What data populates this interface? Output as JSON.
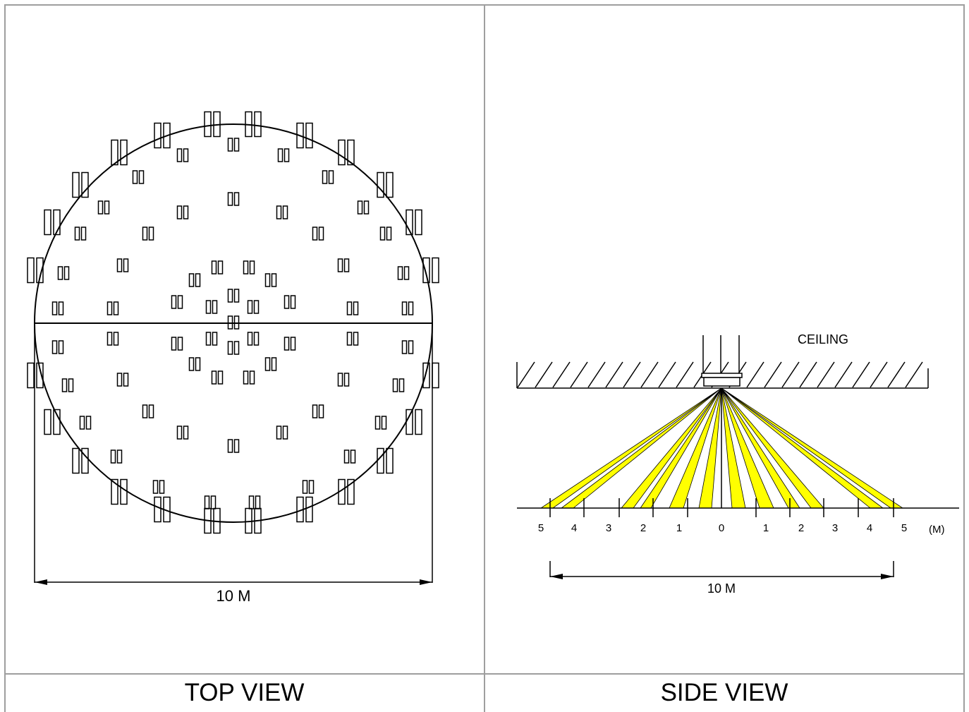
{
  "panels": {
    "top": {
      "caption": "TOP VIEW",
      "dimension_label": "10 M"
    },
    "side": {
      "caption": "SIDE VIEW",
      "ceiling_label": "CEILING",
      "dimension_label": "10 M",
      "scale_labels": [
        "5",
        "4",
        "3",
        "2",
        "1",
        "0",
        "1",
        "2",
        "3",
        "4",
        "5"
      ],
      "unit_label": "(M)"
    }
  },
  "colors": {
    "beam": "#ffff00",
    "line": "#000000",
    "border": "#9e9e9e"
  }
}
